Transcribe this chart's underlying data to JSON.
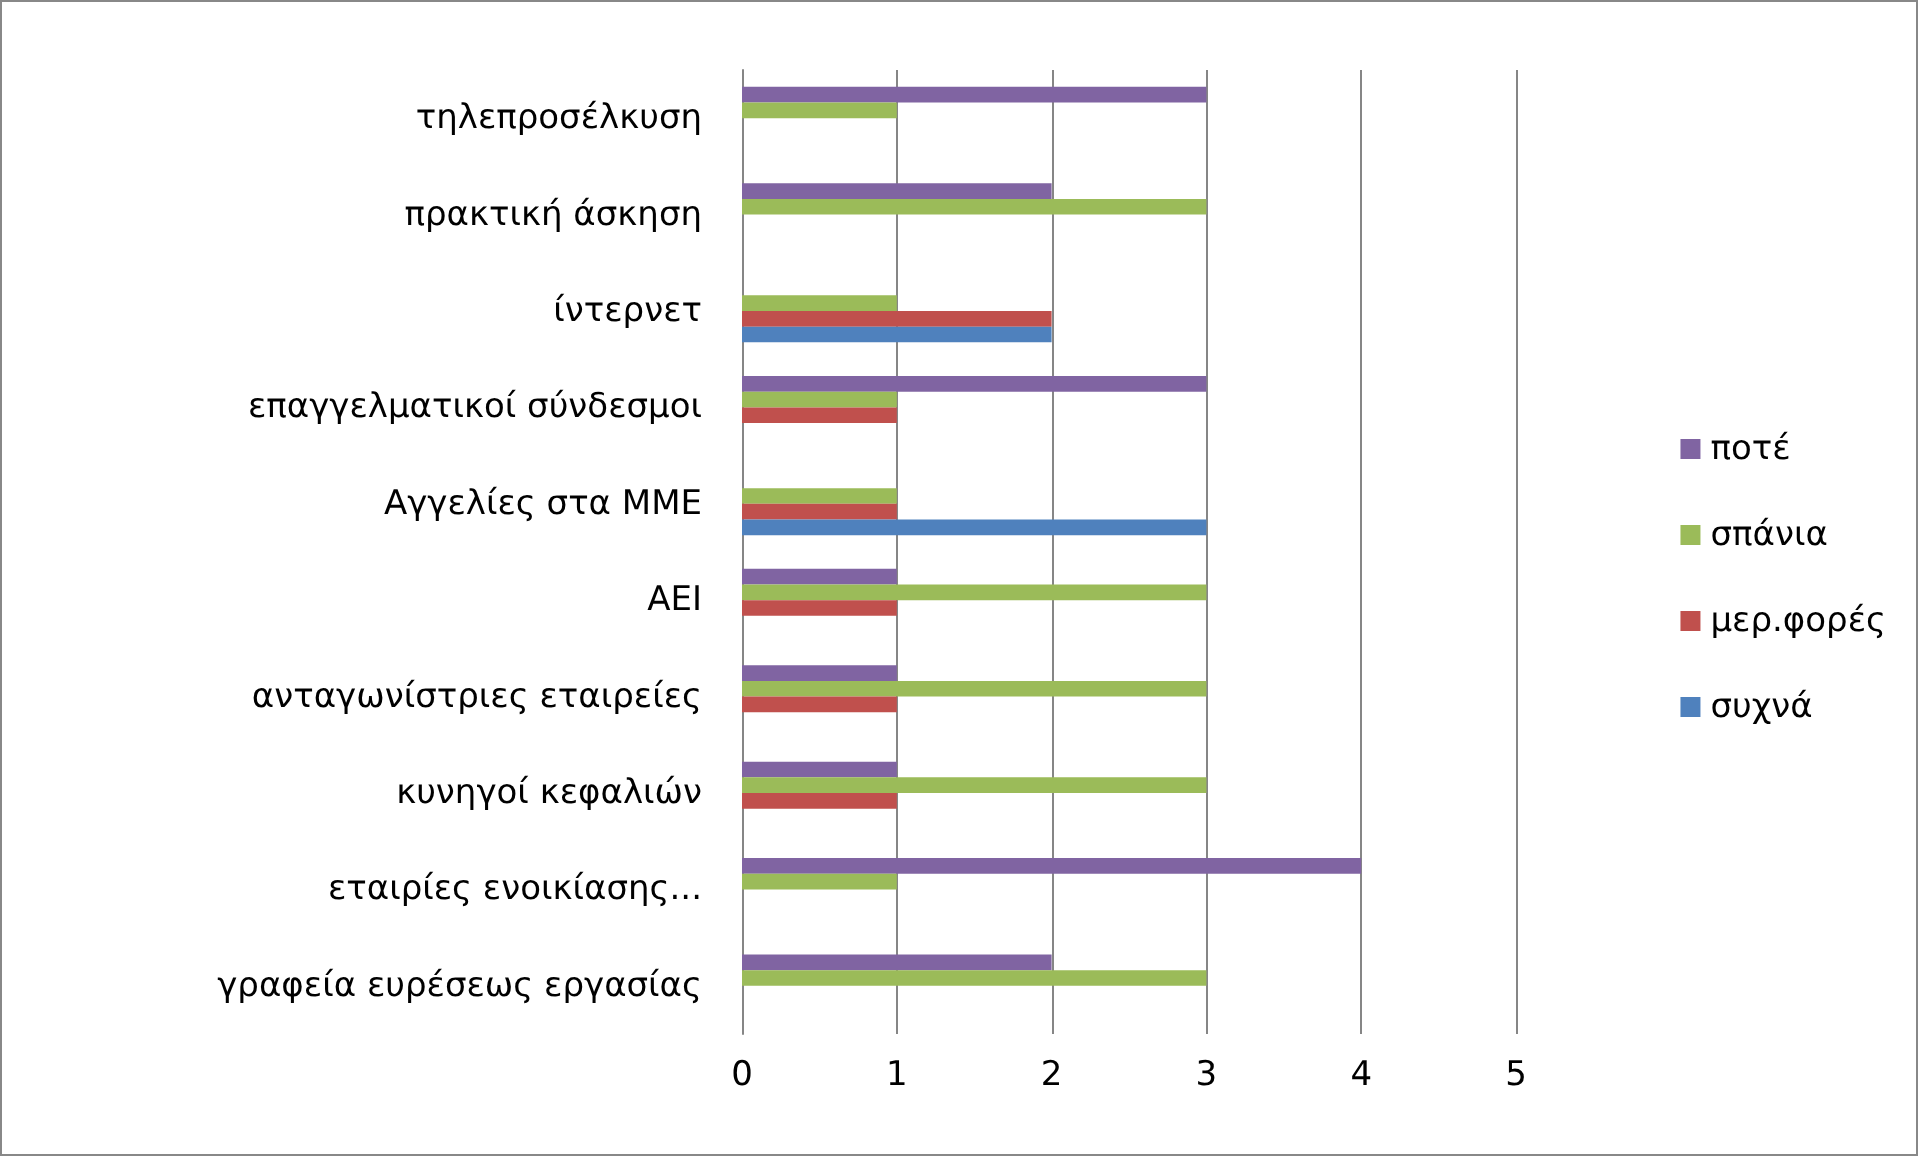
{
  "chart_data": {
    "type": "bar",
    "orientation": "horizontal",
    "categories": [
      "τηλεπροσέλκυση",
      "πρακτική άσκηση",
      "ίντερνετ",
      "επαγγελματικοί σύνδεσμοι",
      "Αγγελίες στα ΜΜΕ",
      "ΑΕΙ",
      "ανταγωνίστριες εταιρείες",
      "κυνηγοί κεφαλιών",
      "εταιρίες ενοικίασης...",
      "γραφεία ευρέσεως εργασίας"
    ],
    "series": [
      {
        "name": "ποτέ",
        "color": "#8064a2",
        "values": [
          3,
          2,
          0,
          3,
          0,
          1,
          1,
          1,
          4,
          2
        ]
      },
      {
        "name": "σπάνια",
        "color": "#9bbb59",
        "values": [
          1,
          3,
          1,
          1,
          1,
          3,
          3,
          3,
          1,
          3
        ]
      },
      {
        "name": "μερ.φορές",
        "color": "#c0504d",
        "values": [
          0,
          0,
          2,
          1,
          1,
          1,
          1,
          1,
          0,
          0
        ]
      },
      {
        "name": "συχνά",
        "color": "#4f81bd",
        "values": [
          0,
          0,
          2,
          0,
          3,
          0,
          0,
          0,
          0,
          0
        ]
      }
    ],
    "xlim": [
      0,
      5
    ],
    "xticks": [
      0,
      1,
      2,
      3,
      4,
      5
    ],
    "grid": "x",
    "legend": "right"
  }
}
